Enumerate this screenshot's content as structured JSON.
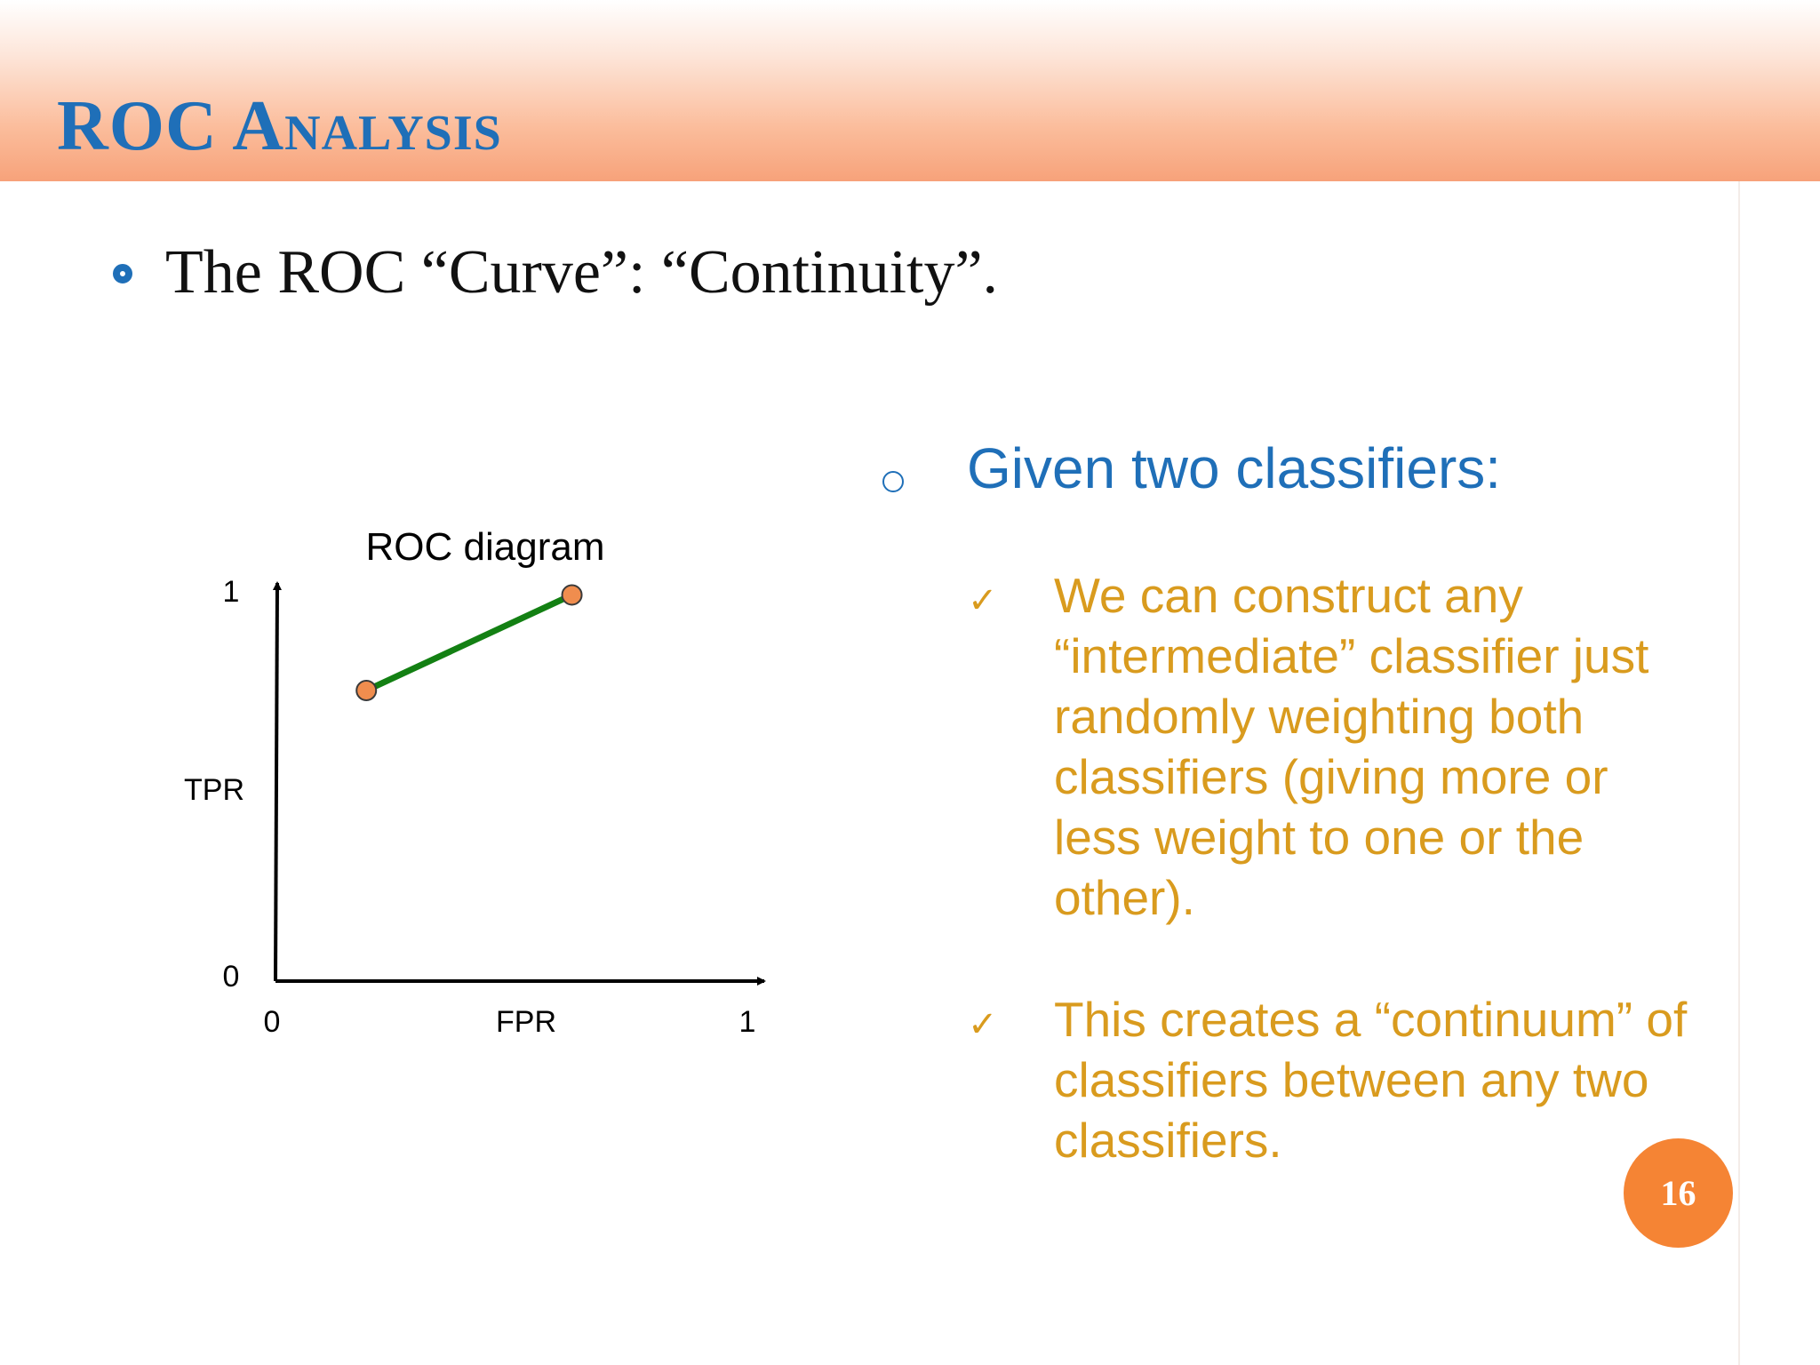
{
  "slide": {
    "title": "ROC Analysis",
    "bullet": "The ROC “Curve”: “Continuity”.",
    "page_number": "16"
  },
  "right": {
    "heading": "Given two classifiers:",
    "points": [
      "We can construct any “intermediate” classifier just randomly weighting both classifiers (giving more or less weight to one or the other).",
      "This creates a “continuum” of classifiers between any two classifiers."
    ]
  },
  "colors": {
    "title_blue": "#1f6fb8",
    "text_gold": "#d99b1e",
    "line_green": "#138013",
    "point_orange": "#f08d4e",
    "badge_orange": "#f58434",
    "header_peach": "#f7a27a"
  },
  "chart_data": {
    "type": "line",
    "title": "ROC diagram",
    "xlabel": "FPR",
    "ylabel": "TPR",
    "xlim": [
      0,
      1
    ],
    "ylim": [
      0,
      1
    ],
    "x_ticks": [
      "0",
      "1"
    ],
    "y_ticks": [
      "0",
      "1"
    ],
    "grid": false,
    "series": [
      {
        "points": [
          {
            "x": 0.19,
            "y": 0.73
          },
          {
            "x": 0.62,
            "y": 0.97
          }
        ]
      }
    ]
  }
}
